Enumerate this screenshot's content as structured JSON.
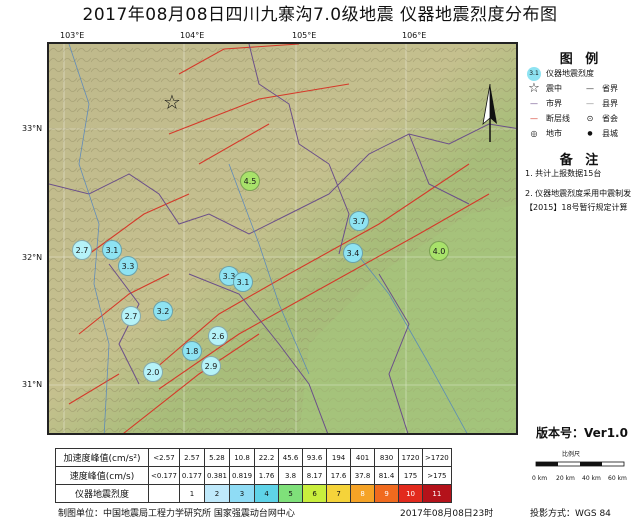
{
  "title": "2017年08月08日四川九寨沟7.0级地震   仪器地震烈度分布图",
  "map": {
    "longitudes": [
      "103°E",
      "104°E",
      "105°E",
      "106°E"
    ],
    "latitudes": [
      "33°N",
      "32°N",
      "31°N"
    ],
    "stations": [
      "4.5",
      "3.7",
      "3.4",
      "4.0",
      "2.7",
      "3.1",
      "3.3",
      "3.3",
      "3.1",
      "2.7",
      "3.2",
      "2.6",
      "1.8",
      "2.9",
      "2.0"
    ],
    "station_colors": {
      "2": "#b5f2f8",
      "3": "#8ee3f2",
      "4": "#a8e26a"
    }
  },
  "legend": {
    "title": "图 例",
    "items": [
      {
        "symbol": "3.1",
        "label": "仪器地震烈度"
      },
      {
        "symbol": "☆",
        "label": "震中"
      },
      {
        "symbol": "—",
        "label": "省界"
      },
      {
        "symbol": "—",
        "label": "市界"
      },
      {
        "symbol": "—",
        "label": "县界"
      },
      {
        "symbol": "—",
        "label": "断层线"
      },
      {
        "symbol": "⊙",
        "label": "省会"
      },
      {
        "symbol": "◎",
        "label": "地市"
      },
      {
        "symbol": "●",
        "label": "县城"
      }
    ],
    "notes_title": "备 注",
    "notes": [
      "1. 共计上报数据15台",
      "2. 仪器地震烈度采用中震制发【2015】18号暂行规定计算"
    ]
  },
  "version": "版本号：Ver1.0",
  "scale": {
    "label": "比例尺",
    "ticks": [
      "0 km",
      "20 km",
      "40 km",
      "60 km"
    ]
  },
  "intensity_table": {
    "pga_label": "加速度峰值(cm/s²)",
    "pga_values": [
      "<2.57",
      "2.57",
      "5.28",
      "10.8",
      "22.2",
      "45.6",
      "93.6",
      "194",
      "401",
      "830",
      "1720",
      ">1720"
    ],
    "pgv_label": "速度峰值(cm/s)",
    "pgv_values": [
      "<0.177",
      "0.177",
      "0.381",
      "0.819",
      "1.76",
      "3.8",
      "8.17",
      "17.6",
      "37.8",
      "81.4",
      "175",
      ">175"
    ],
    "intensity_label": "仪器地震烈度",
    "intensity_levels": [
      "1",
      "2",
      "3",
      "4",
      "5",
      "6",
      "7",
      "8",
      "9",
      "10",
      "11"
    ],
    "intensity_colors": [
      "#ffffff",
      "#bfe9fb",
      "#8fdcf5",
      "#5fd3e8",
      "#7fe07a",
      "#c9ee3d",
      "#f5d33a",
      "#f5a326",
      "#f06a1e",
      "#e22a1d",
      "#b4121a"
    ]
  },
  "footer": {
    "org": "制图单位：中国地震局工程力学研究所  国家强震动台网中心",
    "date": "2017年08月08日23时",
    "projection": "投影方式：WGS 84"
  }
}
